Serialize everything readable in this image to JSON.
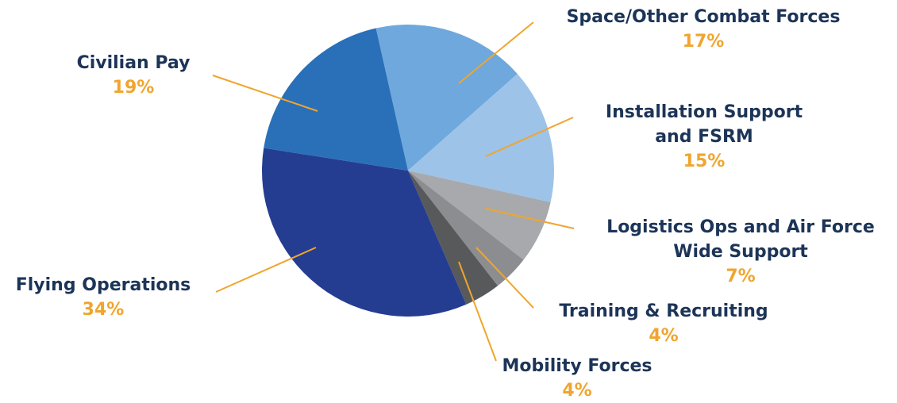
{
  "chart_data": {
    "type": "pie",
    "categories": [
      "Space/Other Combat Forces",
      "Installation Support and FSRM",
      "Logistics Ops and Air Force Wide Support",
      "Training & Recruiting",
      "Mobility Forces",
      "Flying Operations",
      "Civilian Pay"
    ],
    "values": [
      17,
      15,
      7,
      4,
      4,
      34,
      19
    ],
    "value_labels": [
      "17%",
      "15%",
      "7%",
      "4%",
      "4%",
      "34%",
      "19%"
    ],
    "colors": [
      "#6fa8dc",
      "#9dc3e8",
      "#a7a9ac",
      "#8b8d90",
      "#58595b",
      "#253d91",
      "#2970b9"
    ]
  }
}
